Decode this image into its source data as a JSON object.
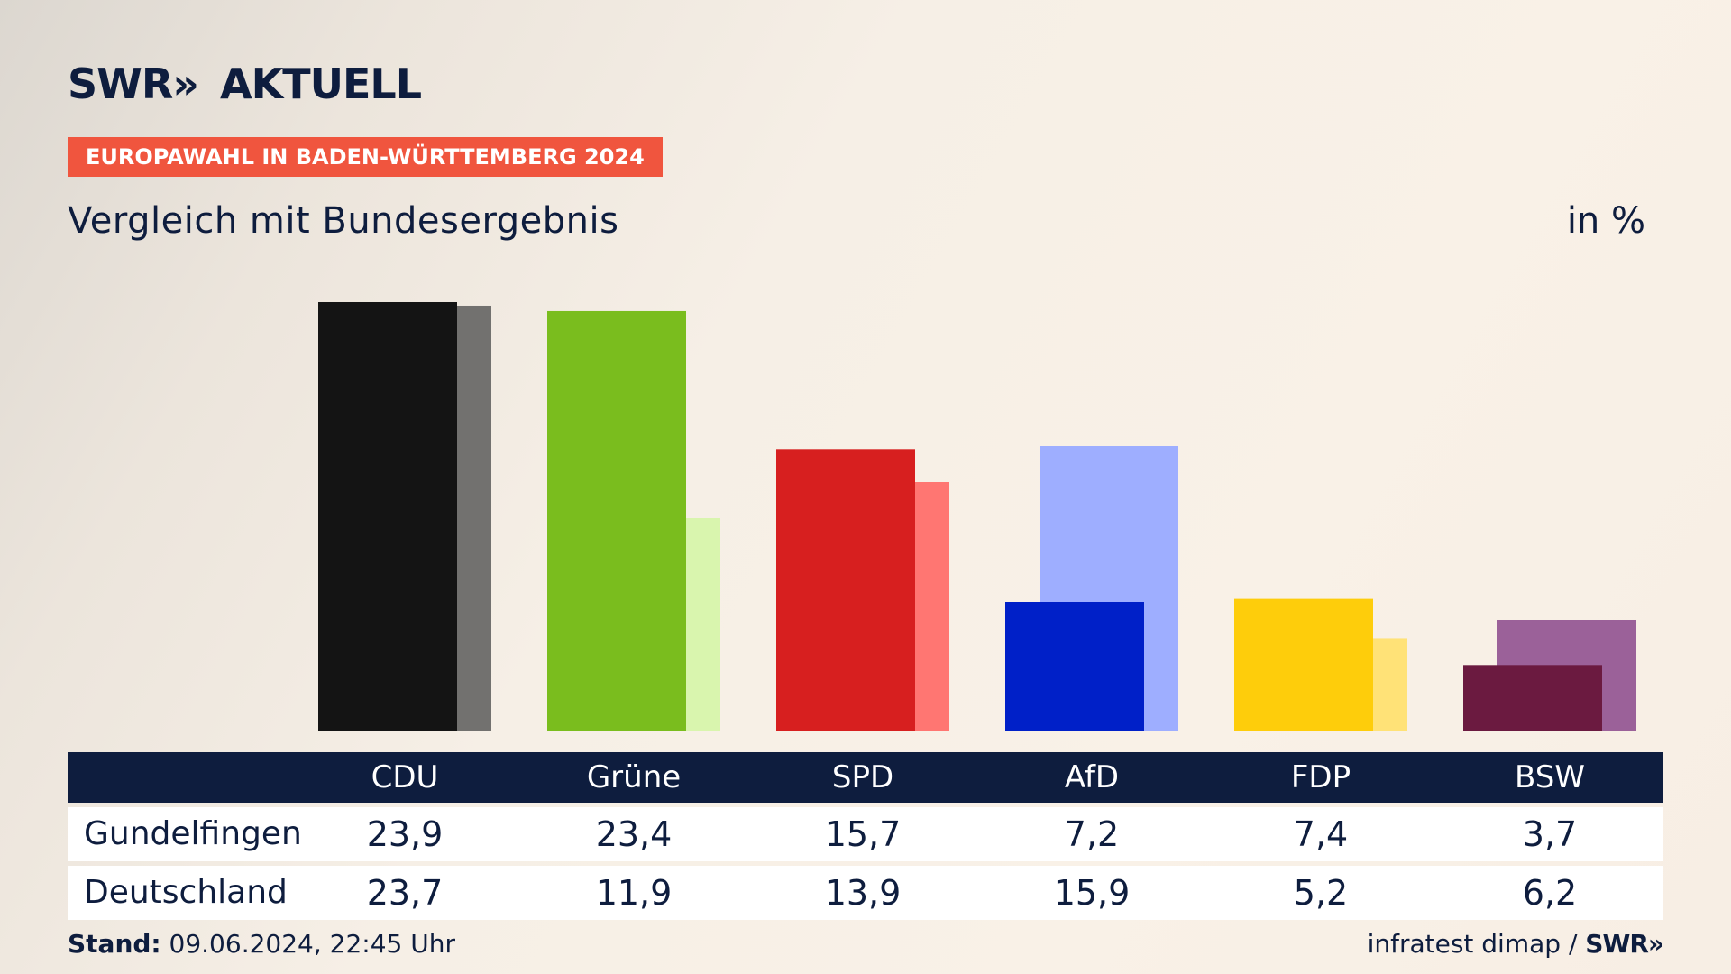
{
  "header": {
    "brand": "SWR",
    "brand_chevrons": "»",
    "product": "AKTUELL",
    "kicker": "EUROPAWAHL IN BADEN-WÜRTTEMBERG 2024",
    "subtitle": "Vergleich mit Bundesergebnis",
    "unit": "in %"
  },
  "colors": {
    "accent": "#f0553e",
    "navy": "#0e1d3e"
  },
  "chart_data": {
    "type": "bar",
    "title": "Vergleich mit Bundesergebnis",
    "ylabel": "in %",
    "categories": [
      "CDU",
      "Grüne",
      "SPD",
      "AfD",
      "FDP",
      "BSW"
    ],
    "series": [
      {
        "name": "Gundelfingen",
        "values": [
          23.9,
          23.4,
          15.7,
          7.2,
          7.4,
          3.7
        ],
        "colors": [
          "#141414",
          "#7abd1e",
          "#d71f1f",
          "#0020c8",
          "#fecd0b",
          "#6b1a40"
        ]
      },
      {
        "name": "Deutschland",
        "values": [
          23.7,
          11.9,
          13.9,
          15.9,
          5.2,
          6.2
        ],
        "colors": [
          "#72716f",
          "#d9f5ae",
          "#ff7672",
          "#9eaeff",
          "#ffe277",
          "#9b6199"
        ]
      }
    ],
    "value_labels": {
      "Gundelfingen": [
        "23,9",
        "23,4",
        "15,7",
        "7,2",
        "7,4",
        "3,7"
      ],
      "Deutschland": [
        "23,7",
        "11,9",
        "13,9",
        "15,9",
        "5,2",
        "6,2"
      ]
    },
    "grid": false,
    "legend": "table-below"
  },
  "footer": {
    "stand_label": "Stand:",
    "stand_value": "09.06.2024, 22:45 Uhr",
    "source": "infratest dimap /",
    "source_brand": "SWR»"
  }
}
